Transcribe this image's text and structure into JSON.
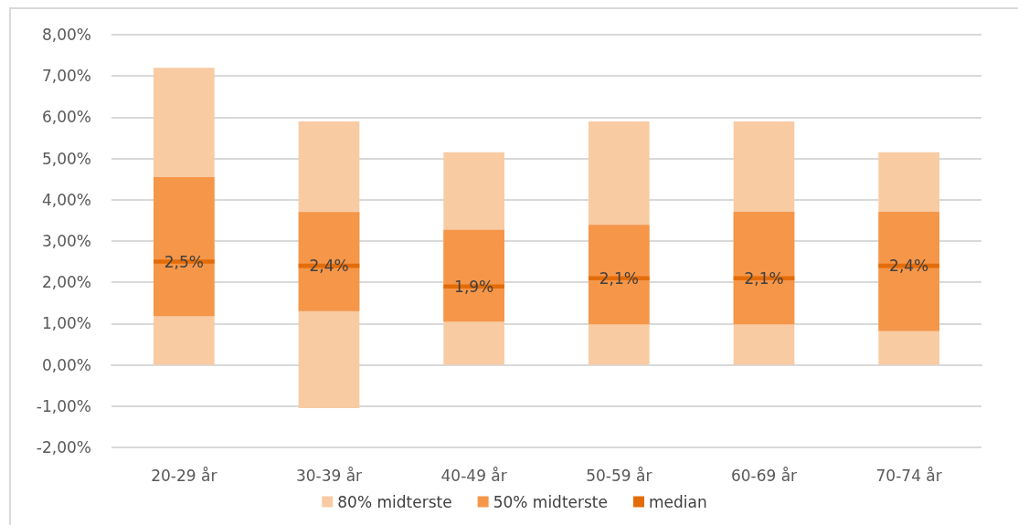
{
  "chart_data": {
    "type": "bar",
    "categories": [
      "20-29 år",
      "30-39 år",
      "40-49 år",
      "50-59 år",
      "60-69 år",
      "70-74 år"
    ],
    "series": [
      {
        "name": "80% midterste",
        "color": "#f8cba3",
        "base": [
          0,
          -1.05,
          0,
          0,
          0,
          0
        ],
        "values": [
          7.2,
          6.95,
          5.15,
          5.9,
          5.9,
          5.15
        ]
      },
      {
        "name": "50% midterste",
        "color": "#f59649",
        "base": [
          1.18,
          1.3,
          1.05,
          0.98,
          0.98,
          0.82
        ],
        "values": [
          3.37,
          2.4,
          2.22,
          2.41,
          2.73,
          2.89
        ]
      },
      {
        "name": "median",
        "color": "#e36c0a",
        "base": [
          2.45,
          2.35,
          1.85,
          2.05,
          2.05,
          2.35
        ],
        "values": [
          0.1,
          0.1,
          0.1,
          0.1,
          0.1,
          0.1
        ],
        "value_labels": [
          "2,5%",
          "2,4%",
          "1,9%",
          "2,1%",
          "2,1%",
          "2,4%"
        ]
      }
    ],
    "ylim": [
      -2,
      8
    ],
    "yticks": [
      {
        "value": -2,
        "label": "-2,00%"
      },
      {
        "value": -1,
        "label": "-1,00%"
      },
      {
        "value": 0,
        "label": "0,00%"
      },
      {
        "value": 1,
        "label": "1,00%"
      },
      {
        "value": 2,
        "label": "2,00%"
      },
      {
        "value": 3,
        "label": "3,00%"
      },
      {
        "value": 4,
        "label": "4,00%"
      },
      {
        "value": 5,
        "label": "5,00%"
      },
      {
        "value": 6,
        "label": "6,00%"
      },
      {
        "value": 7,
        "label": "7,00%"
      },
      {
        "value": 8,
        "label": "8,00%"
      }
    ],
    "grid": "y",
    "legend": "bottom"
  }
}
